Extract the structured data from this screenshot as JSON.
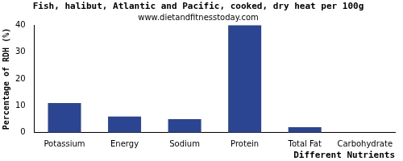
{
  "chart_data": {
    "type": "bar",
    "title": "Fish, halibut, Atlantic and Pacific, cooked, dry heat per 100g",
    "subtitle": "www.dietandfitnesstoday.com",
    "x_label": "Different Nutrients",
    "y_label": "Percentage of RDH (%)",
    "categories": [
      "Potassium",
      "Energy",
      "Sodium",
      "Protein",
      "Total Fat",
      "Carbohydrate"
    ],
    "values": [
      11,
      6,
      5,
      40,
      2,
      0
    ],
    "color": "#2b4592",
    "ylim": [
      0,
      40
    ],
    "yticks": [
      0,
      10,
      20,
      30,
      40
    ],
    "grid": false
  }
}
